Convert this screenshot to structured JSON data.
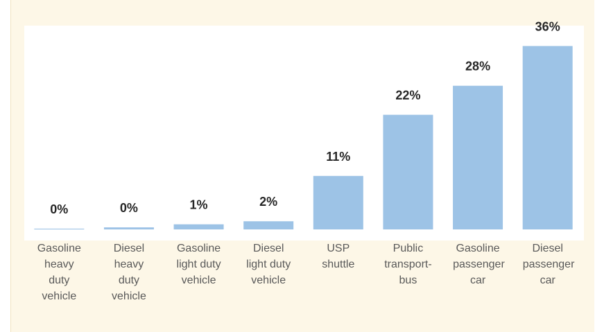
{
  "chart_data": {
    "type": "bar",
    "categories": [
      "Gasoline heavy duty vehicle",
      "Diesel heavy duty vehicle",
      "Gasoline light duty vehicle",
      "Diesel light duty vehicle",
      "USP shuttle",
      "Public transport-bus",
      "Gasoline passenger car",
      "Diesel passenger car"
    ],
    "values": [
      0.15,
      0.4,
      1,
      1.6,
      10.5,
      22.5,
      28.2,
      36
    ],
    "value_labels": [
      "0%",
      "0%",
      "1%",
      "2%",
      "11%",
      "22%",
      "28%",
      "36%"
    ],
    "color": "#9dc3e6",
    "ylim": [
      0,
      40
    ]
  }
}
